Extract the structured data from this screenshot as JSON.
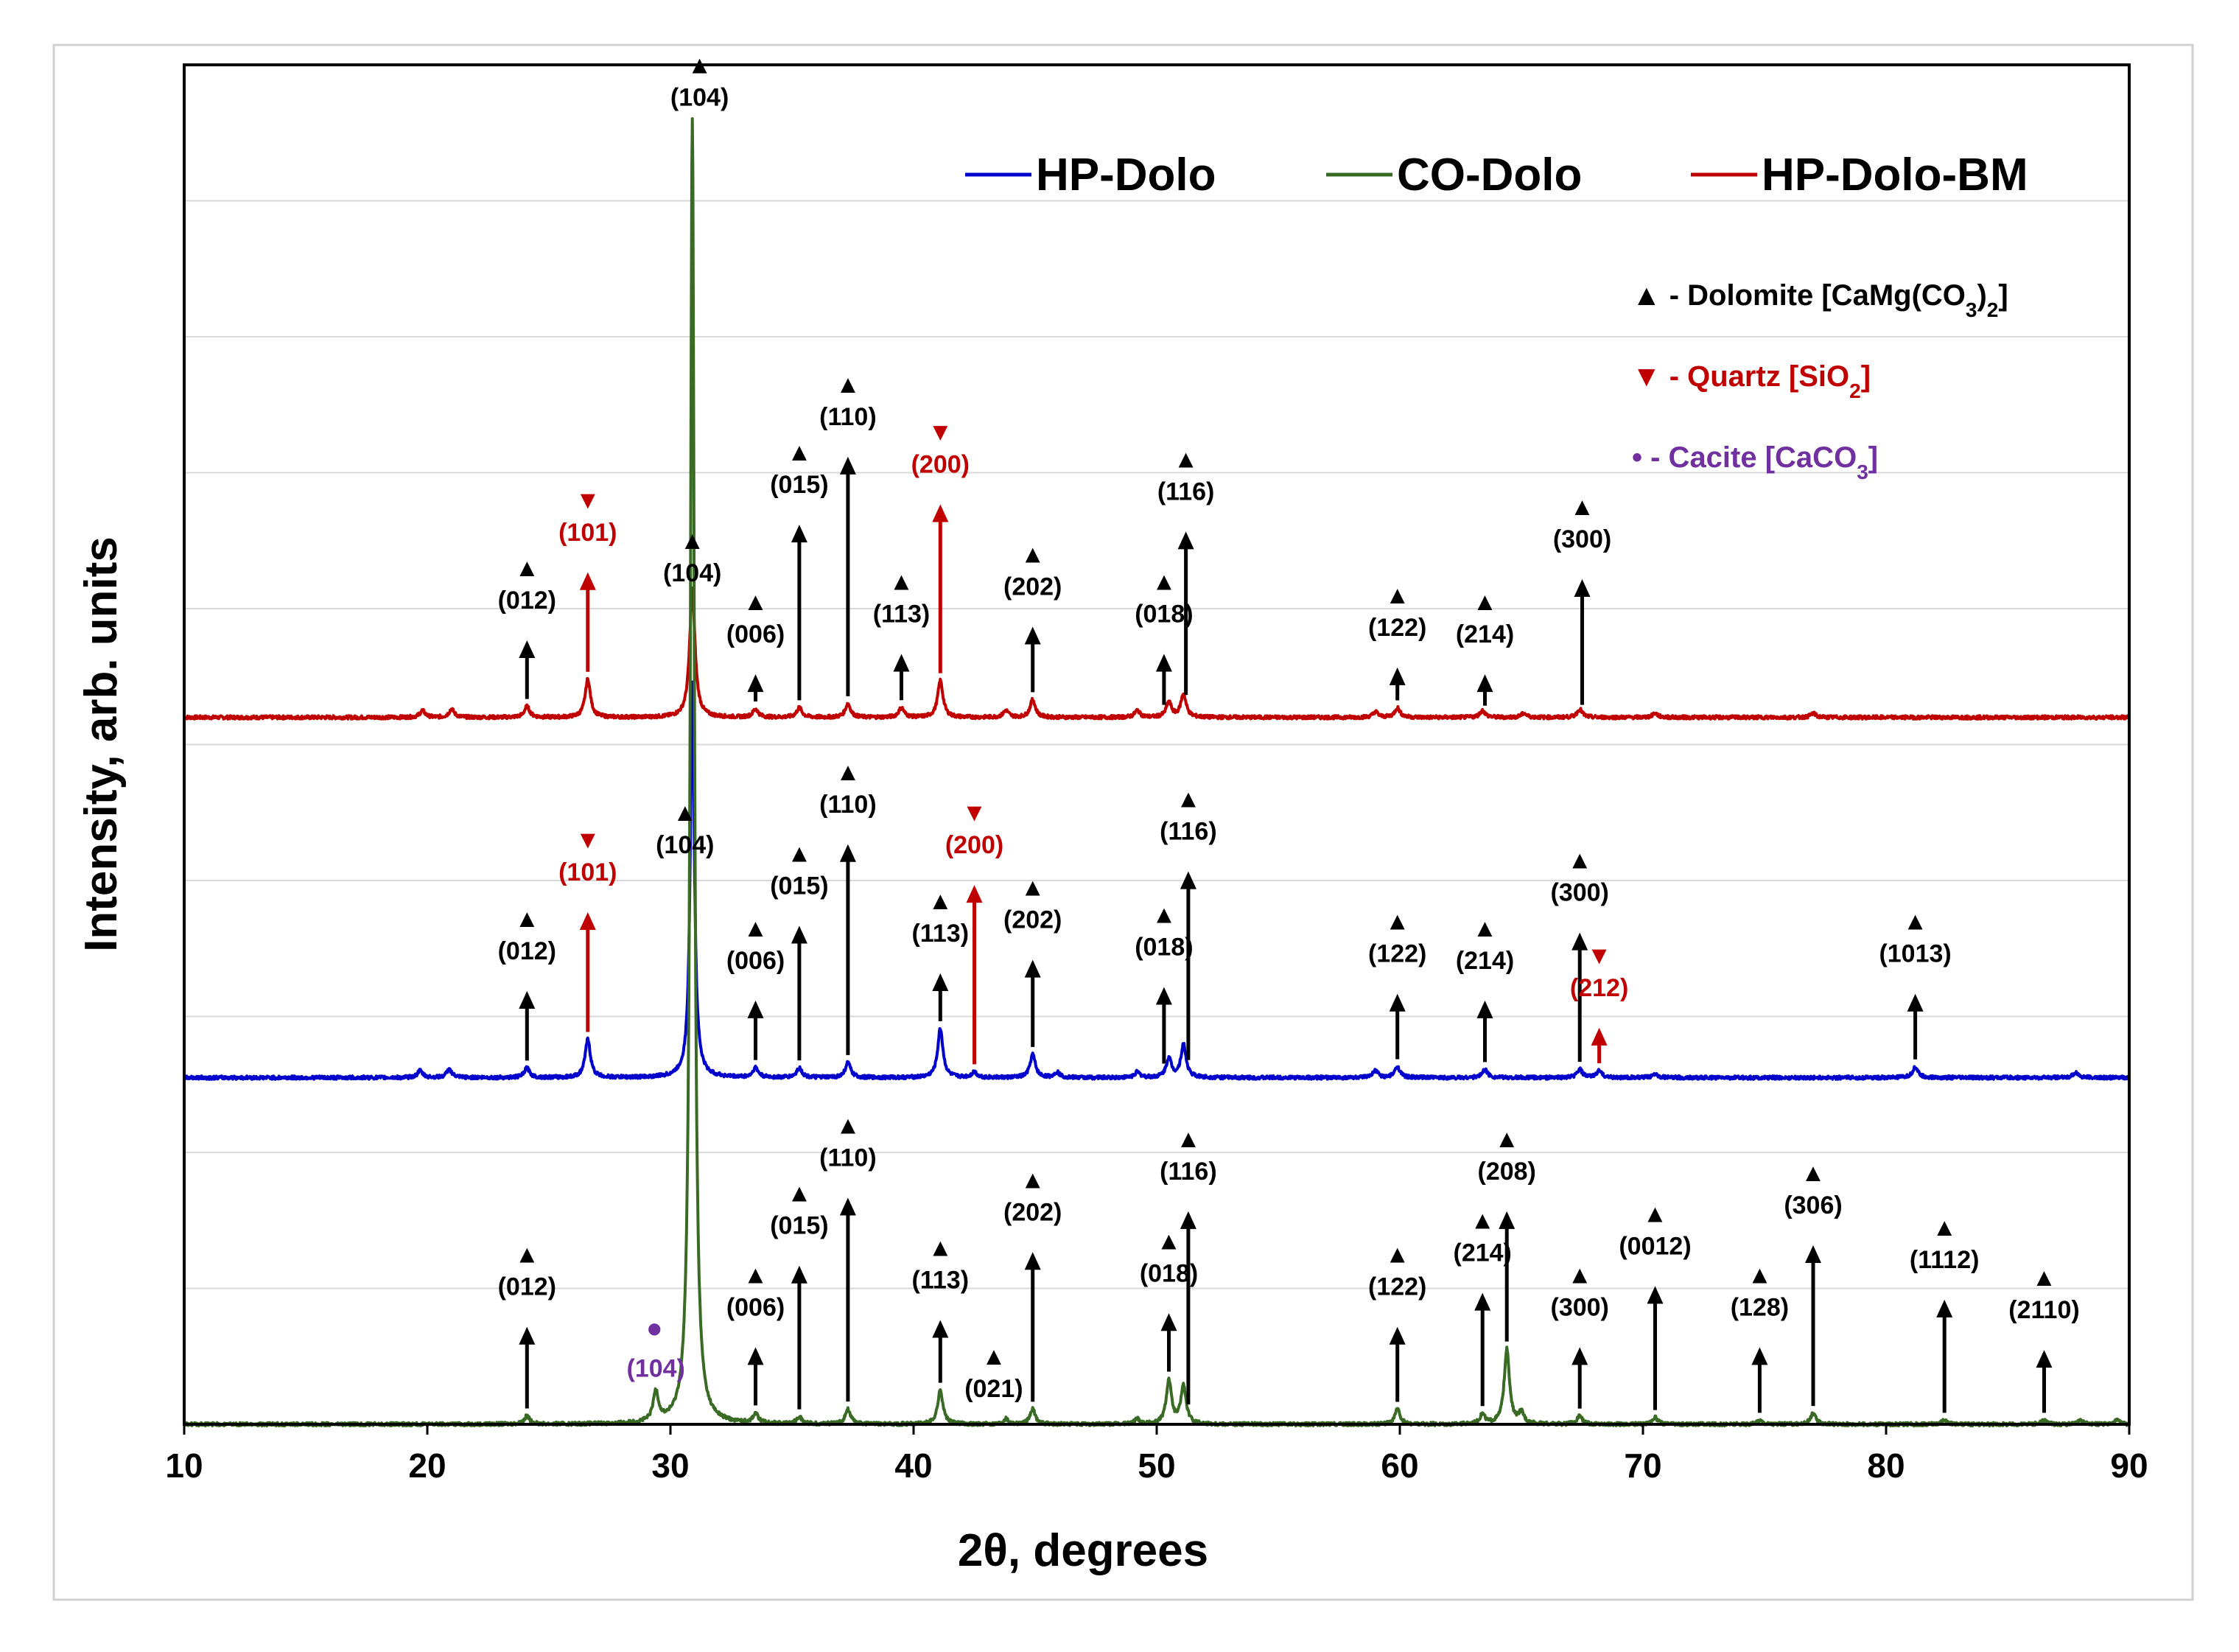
{
  "chart_data": {
    "type": "line",
    "xlabel": "2θ, degrees",
    "ylabel": "Intensity, arb. units",
    "xlim": [
      10,
      90
    ],
    "ylim": [
      0,
      10
    ],
    "x_ticks": [
      10,
      20,
      30,
      40,
      50,
      60,
      70,
      80,
      90
    ],
    "x_tick_labels": [
      "10",
      "20",
      "30",
      "40",
      "50",
      "60",
      "70",
      "80",
      "90"
    ],
    "grid": "horizontal",
    "legend": {
      "placement": "top-right",
      "entries": [
        {
          "name": "HP-Dolo",
          "color": "#0000cc"
        },
        {
          "name": "CO-Dolo",
          "color": "#3a6b25"
        },
        {
          "name": "HP-Dolo-BM",
          "color": "#c00000"
        }
      ]
    },
    "phase_key": [
      {
        "marker": "▲",
        "prefix": " - Dolomite [CaMg(CO",
        "sub1": "3",
        "mid": ")",
        "sub2": "2",
        "suffix": "]",
        "color": "#000000"
      },
      {
        "marker": "▼",
        "prefix": " - Quartz [SiO",
        "sub1": "2",
        "mid": "",
        "sub2": "",
        "suffix": "]",
        "color": "#c00000"
      },
      {
        "marker": "•",
        "prefix": " - Cacite [CaCO",
        "sub1": "3",
        "mid": "",
        "sub2": "",
        "suffix": "]",
        "color": "#7030a0"
      }
    ],
    "series": [
      {
        "name": "HP-Dolo-BM",
        "color": "#c00000",
        "baseline": 5.2,
        "peaks": [
          [
            19.8,
            0.05
          ],
          [
            21,
            0.06
          ],
          [
            24.1,
            0.08
          ],
          [
            26.6,
            0.28
          ],
          [
            30.9,
            0.95
          ],
          [
            33.5,
            0.06
          ],
          [
            35.3,
            0.07
          ],
          [
            37.3,
            0.1
          ],
          [
            39.5,
            0.07
          ],
          [
            41.1,
            0.27
          ],
          [
            43.8,
            0.05
          ],
          [
            44.9,
            0.13
          ],
          [
            49.2,
            0.05
          ],
          [
            50.5,
            0.11
          ],
          [
            51.1,
            0.17
          ],
          [
            59.0,
            0.04
          ],
          [
            59.9,
            0.07
          ],
          [
            63.4,
            0.05
          ],
          [
            65.1,
            0.03
          ],
          [
            67.4,
            0.06
          ],
          [
            70.5,
            0.03
          ],
          [
            77,
            0.03
          ]
        ],
        "labels": [
          {
            "text": "(012)",
            "x": 24.1,
            "label_y": 6.0,
            "marker": "▲",
            "color": "#000000",
            "arrow": true
          },
          {
            "text": "(101)",
            "x": 26.6,
            "label_y": 6.5,
            "marker": "▼",
            "color": "#c00000",
            "arrow": true
          },
          {
            "text": "(104)",
            "x": 30.9,
            "label_y": 6.2,
            "marker": "▲",
            "color": "#000000",
            "arrow": false
          },
          {
            "text": "(006)",
            "x": 33.5,
            "label_y": 5.75,
            "marker": "▲",
            "color": "#000000",
            "arrow": true
          },
          {
            "text": "(015)",
            "x": 35.3,
            "label_y": 6.85,
            "marker": "▲",
            "color": "#000000",
            "arrow": true
          },
          {
            "text": "(110)",
            "x": 37.3,
            "label_y": 7.35,
            "marker": "▲",
            "color": "#000000",
            "arrow": true
          },
          {
            "text": "(200)",
            "x": 41.1,
            "label_y": 7.0,
            "marker": "▼",
            "color": "#c00000",
            "arrow": true
          },
          {
            "text": "(113)",
            "x": 39.5,
            "label_y": 5.9,
            "marker": "▲",
            "color": "#000000",
            "arrow": true
          },
          {
            "text": "(202)",
            "x": 44.9,
            "label_y": 6.1,
            "marker": "▲",
            "color": "#000000",
            "arrow": true
          },
          {
            "text": "(018)",
            "x": 50.3,
            "label_y": 5.9,
            "marker": "▲",
            "color": "#000000",
            "arrow": true
          },
          {
            "text": "(116)",
            "x": 51.2,
            "label_y": 6.8,
            "marker": "▲",
            "color": "#000000",
            "arrow": true
          },
          {
            "text": "(122)",
            "x": 59.9,
            "label_y": 5.8,
            "marker": "▲",
            "color": "#000000",
            "arrow": true
          },
          {
            "text": "(214)",
            "x": 63.5,
            "label_y": 5.75,
            "marker": "▲",
            "color": "#000000",
            "arrow": true
          },
          {
            "text": "(300)",
            "x": 67.5,
            "label_y": 6.45,
            "marker": "▲",
            "color": "#000000",
            "arrow": true
          }
        ]
      },
      {
        "name": "HP-Dolo",
        "color": "#0000cc",
        "baseline": 2.55,
        "peaks": [
          [
            19.7,
            0.05
          ],
          [
            20.9,
            0.06
          ],
          [
            24.1,
            0.07
          ],
          [
            26.6,
            0.28
          ],
          [
            30.9,
            2.9
          ],
          [
            33.5,
            0.07
          ],
          [
            35.3,
            0.07
          ],
          [
            37.3,
            0.11
          ],
          [
            41.1,
            0.36
          ],
          [
            42.5,
            0.04
          ],
          [
            44.9,
            0.17
          ],
          [
            45.9,
            0.04
          ],
          [
            49.2,
            0.04
          ],
          [
            50.5,
            0.14
          ],
          [
            51.1,
            0.24
          ],
          [
            59.0,
            0.05
          ],
          [
            59.9,
            0.08
          ],
          [
            63.5,
            0.06
          ],
          [
            67.4,
            0.06
          ],
          [
            68.2,
            0.05
          ],
          [
            70.5,
            0.03
          ],
          [
            81.2,
            0.08
          ],
          [
            87.8,
            0.04
          ]
        ],
        "labels": [
          {
            "text": "(012)",
            "x": 24.1,
            "label_y": 3.42,
            "marker": "▲",
            "color": "#000000",
            "arrow": true
          },
          {
            "text": "(101)",
            "x": 26.6,
            "label_y": 4.0,
            "marker": "▼",
            "color": "#c00000",
            "arrow": true
          },
          {
            "text": "(104)",
            "x": 30.6,
            "label_y": 4.2,
            "marker": "▲",
            "color": "#000000",
            "arrow": false
          },
          {
            "text": "(006)",
            "x": 33.5,
            "label_y": 3.35,
            "marker": "▲",
            "color": "#000000",
            "arrow": true
          },
          {
            "text": "(015)",
            "x": 35.3,
            "label_y": 3.9,
            "marker": "▲",
            "color": "#000000",
            "arrow": true
          },
          {
            "text": "(110)",
            "x": 37.3,
            "label_y": 4.5,
            "marker": "▲",
            "color": "#000000",
            "arrow": true
          },
          {
            "text": "(200)",
            "x": 42.5,
            "label_y": 4.2,
            "marker": "▼",
            "color": "#c00000",
            "arrow": true
          },
          {
            "text": "(113)",
            "x": 41.1,
            "label_y": 3.55,
            "marker": "▲",
            "color": "#000000",
            "arrow": true
          },
          {
            "text": "(202)",
            "x": 44.9,
            "label_y": 3.65,
            "marker": "▲",
            "color": "#000000",
            "arrow": true
          },
          {
            "text": "(018)",
            "x": 50.3,
            "label_y": 3.45,
            "marker": "▲",
            "color": "#000000",
            "arrow": true
          },
          {
            "text": "(116)",
            "x": 51.3,
            "label_y": 4.3,
            "marker": "▲",
            "color": "#000000",
            "arrow": true
          },
          {
            "text": "(122)",
            "x": 59.9,
            "label_y": 3.4,
            "marker": "▲",
            "color": "#000000",
            "arrow": true
          },
          {
            "text": "(214)",
            "x": 63.5,
            "label_y": 3.35,
            "marker": "▲",
            "color": "#000000",
            "arrow": true
          },
          {
            "text": "(300)",
            "x": 67.4,
            "label_y": 3.85,
            "marker": "▲",
            "color": "#000000",
            "arrow": true
          },
          {
            "text": "(212)",
            "x": 68.2,
            "label_y": 3.15,
            "marker": "▼",
            "color": "#c00000",
            "arrow": true
          },
          {
            "text": "(1013)",
            "x": 81.2,
            "label_y": 3.4,
            "marker": "▲",
            "color": "#000000",
            "arrow": true
          }
        ]
      },
      {
        "name": "CO-Dolo",
        "color": "#3a6b25",
        "baseline": 0.0,
        "peaks": [
          [
            24.1,
            0.06
          ],
          [
            29.4,
            0.22
          ],
          [
            30.9,
            9.6
          ],
          [
            33.5,
            0.07
          ],
          [
            35.3,
            0.05
          ],
          [
            37.3,
            0.11
          ],
          [
            41.1,
            0.25
          ],
          [
            43.8,
            0.04
          ],
          [
            44.9,
            0.11
          ],
          [
            49.2,
            0.04
          ],
          [
            50.5,
            0.32
          ],
          [
            51.1,
            0.28
          ],
          [
            59.9,
            0.11
          ],
          [
            63.4,
            0.07
          ],
          [
            64.4,
            0.55
          ],
          [
            65.0,
            0.08
          ],
          [
            67.4,
            0.06
          ],
          [
            70.5,
            0.05
          ],
          [
            74.8,
            0.03
          ],
          [
            77.0,
            0.08
          ],
          [
            82.4,
            0.03
          ],
          [
            86.5,
            0.03
          ],
          [
            88,
            0.03
          ],
          [
            89.5,
            0.03
          ]
        ],
        "labels": [
          {
            "text": "(012)",
            "x": 24.1,
            "label_y": 0.95,
            "marker": "▲",
            "color": "#000000",
            "arrow": true
          },
          {
            "text": "(104)",
            "x": 29.4,
            "label_y": 0.35,
            "marker": "•",
            "color": "#7030a0",
            "arrow": false
          },
          {
            "text": "(104)",
            "x": 31.2,
            "label_y": 9.7,
            "marker": "▲",
            "color": "#000000",
            "arrow": false
          },
          {
            "text": "(006)",
            "x": 33.5,
            "label_y": 0.8,
            "marker": "▲",
            "color": "#000000",
            "arrow": true
          },
          {
            "text": "(015)",
            "x": 35.3,
            "label_y": 1.4,
            "marker": "▲",
            "color": "#000000",
            "arrow": true
          },
          {
            "text": "(110)",
            "x": 37.3,
            "label_y": 1.9,
            "marker": "▲",
            "color": "#000000",
            "arrow": true
          },
          {
            "text": "(113)",
            "x": 41.1,
            "label_y": 1.0,
            "marker": "▲",
            "color": "#000000",
            "arrow": true
          },
          {
            "text": "(021)",
            "x": 43.3,
            "label_y": 0.2,
            "marker": "▲",
            "color": "#000000",
            "arrow": false
          },
          {
            "text": "(202)",
            "x": 44.9,
            "label_y": 1.5,
            "marker": "▲",
            "color": "#000000",
            "arrow": true
          },
          {
            "text": "(018)",
            "x": 50.5,
            "label_y": 1.05,
            "marker": "▲",
            "color": "#000000",
            "arrow": true
          },
          {
            "text": "(116)",
            "x": 51.3,
            "label_y": 1.8,
            "marker": "▲",
            "color": "#000000",
            "arrow": true
          },
          {
            "text": "(122)",
            "x": 59.9,
            "label_y": 0.95,
            "marker": "▲",
            "color": "#000000",
            "arrow": true
          },
          {
            "text": "(214)",
            "x": 63.4,
            "label_y": 1.2,
            "marker": "▲",
            "color": "#000000",
            "arrow": true
          },
          {
            "text": "(208)",
            "x": 64.4,
            "label_y": 1.8,
            "marker": "▲",
            "color": "#000000",
            "arrow": true
          },
          {
            "text": "(300)",
            "x": 67.4,
            "label_y": 0.8,
            "marker": "▲",
            "color": "#000000",
            "arrow": true
          },
          {
            "text": "(0012)",
            "x": 70.5,
            "label_y": 1.25,
            "marker": "▲",
            "color": "#000000",
            "arrow": true
          },
          {
            "text": "(128)",
            "x": 74.8,
            "label_y": 0.8,
            "marker": "▲",
            "color": "#000000",
            "arrow": true
          },
          {
            "text": "(306)",
            "x": 77.0,
            "label_y": 1.55,
            "marker": "▲",
            "color": "#000000",
            "arrow": true
          },
          {
            "text": "(1112)",
            "x": 82.4,
            "label_y": 1.15,
            "marker": "▲",
            "color": "#000000",
            "arrow": true
          },
          {
            "text": "(2110)",
            "x": 86.5,
            "label_y": 0.78,
            "marker": "▲",
            "color": "#000000",
            "arrow": true
          }
        ]
      }
    ]
  }
}
